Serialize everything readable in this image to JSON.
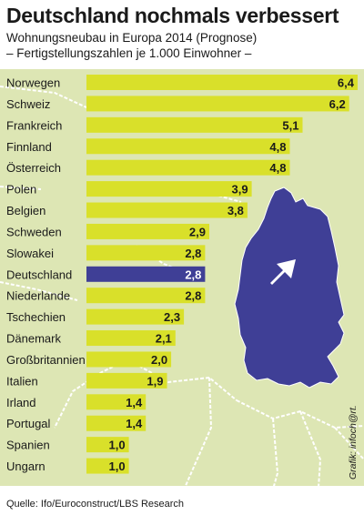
{
  "header": {
    "title": "Deutschland nochmals verbessert",
    "subtitle": "Wohnungsneubau in Europa 2014 (Prognose)",
    "subtitle2": "– Fertigstellungszahlen je 1.000 Einwohner –"
  },
  "footer": {
    "source": "Quelle: Ifo/Euroconstruct/LBS Research",
    "credit": "Grafik: infoch@rt."
  },
  "colors": {
    "bar": "#d9e02a",
    "highlight": "#3f3f96",
    "map_land": "#dde6b4",
    "map_border": "#ffffff",
    "map_germany": "#3f3f96"
  },
  "chart_data": {
    "type": "bar",
    "orientation": "horizontal",
    "categories": [
      "Norwegen",
      "Schweiz",
      "Frankreich",
      "Finnland",
      "Österreich",
      "Polen",
      "Belgien",
      "Schweden",
      "Slowakei",
      "Deutschland",
      "Niederlande",
      "Tschechien",
      "Dänemark",
      "Großbritannien",
      "Italien",
      "Irland",
      "Portugal",
      "Spanien",
      "Ungarn"
    ],
    "values": [
      6.4,
      6.2,
      5.1,
      4.8,
      4.8,
      3.9,
      3.8,
      2.9,
      2.8,
      2.8,
      2.8,
      2.3,
      2.1,
      2.0,
      1.9,
      1.4,
      1.4,
      1.0,
      1.0
    ],
    "value_labels": [
      "6,4",
      "6,2",
      "5,1",
      "4,8",
      "4,8",
      "3,9",
      "3,8",
      "2,9",
      "2,8",
      "2,8",
      "2,8",
      "2,3",
      "2,1",
      "2,0",
      "1,9",
      "1,4",
      "1,4",
      "1,0",
      "1,0"
    ],
    "highlight": "Deutschland",
    "xlim": [
      0,
      6.4
    ]
  }
}
